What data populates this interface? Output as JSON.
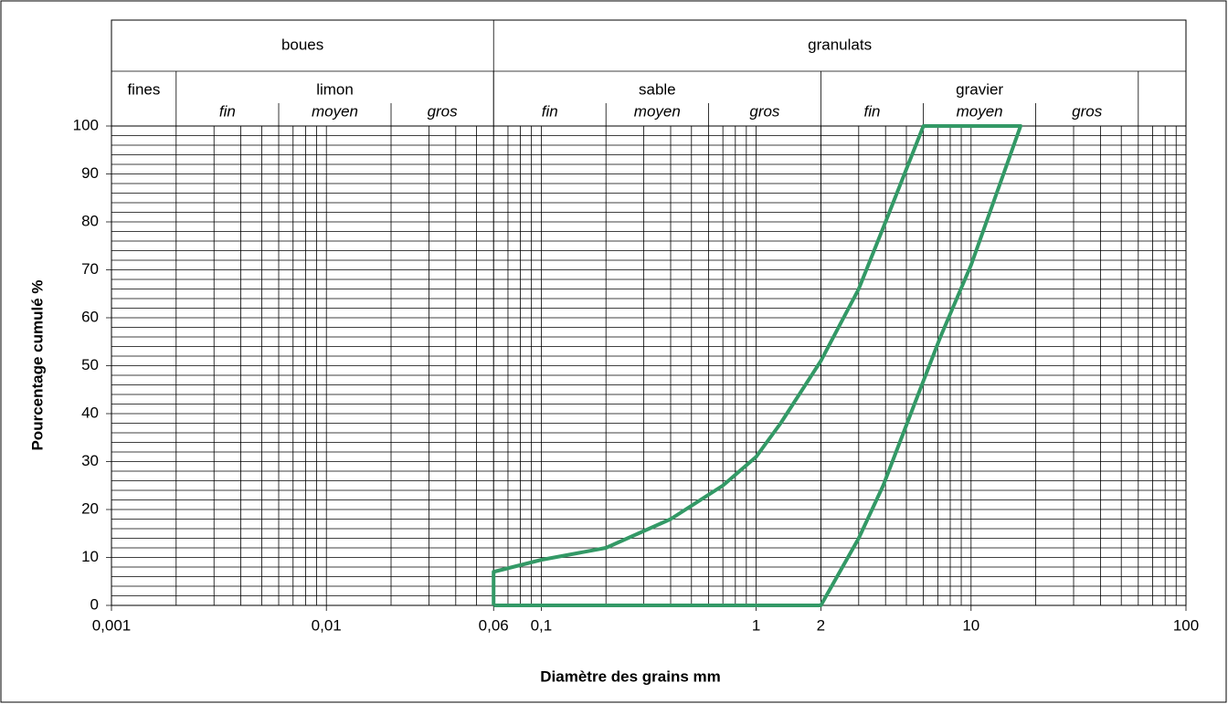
{
  "chart_data": {
    "type": "line",
    "x_label": "Diamètre des grains mm",
    "y_label": "Pourcentage cumulé %",
    "log_x": true,
    "grid": true,
    "xlim": [
      0.001,
      100
    ],
    "ylim": [
      0,
      100
    ],
    "xticks": [
      {
        "value": 0.001,
        "label": "0,001"
      },
      {
        "value": 0.01,
        "label": "0,01"
      },
      {
        "value": 0.06,
        "label": "0,06"
      },
      {
        "value": 0.1,
        "label": "0,1"
      },
      1,
      2,
      10,
      100
    ],
    "x_minor_ticks": [
      0.002,
      0.003,
      0.004,
      0.005,
      0.006,
      0.007,
      0.008,
      0.009,
      0.02,
      0.03,
      0.04,
      0.05,
      0.06,
      0.07,
      0.08,
      0.09,
      0.2,
      0.3,
      0.4,
      0.5,
      0.6,
      0.7,
      0.8,
      0.9,
      2,
      3,
      4,
      5,
      6,
      7,
      8,
      9,
      20,
      30,
      40,
      50,
      60,
      70,
      80,
      90
    ],
    "yticks": [
      0,
      10,
      20,
      30,
      40,
      50,
      60,
      70,
      80,
      90,
      100
    ],
    "y_minor_ticks": [
      2,
      4,
      6,
      8,
      12,
      14,
      16,
      18,
      22,
      24,
      26,
      28,
      32,
      34,
      36,
      38,
      42,
      44,
      46,
      48,
      52,
      54,
      56,
      58,
      62,
      64,
      66,
      68,
      72,
      74,
      76,
      78,
      82,
      84,
      86,
      88,
      92,
      94,
      96,
      98
    ],
    "series": [
      {
        "color": "#339966",
        "x": [
          0.06,
          0.06,
          0.1,
          0.2,
          0.4,
          0.7,
          1,
          1.3,
          2,
          3,
          4,
          6,
          17,
          10,
          7.2,
          5.4,
          3.9,
          3,
          2,
          0.06
        ],
        "values": [
          0,
          7,
          9.5,
          12,
          18,
          25,
          31,
          38,
          51,
          66,
          80,
          100,
          100,
          71,
          56,
          41.5,
          25,
          14,
          0,
          0
        ]
      }
    ],
    "header": {
      "top": [
        {
          "label": "boues",
          "from": 0.001,
          "to": 0.06
        },
        {
          "label": "granulats",
          "from": 0.06,
          "to": 100
        }
      ],
      "groups": [
        {
          "label": "fines",
          "from": 0.001,
          "to": 0.002,
          "subs": []
        },
        {
          "label": "limon",
          "from": 0.002,
          "to": 0.06,
          "subs": [
            {
              "label": "fin",
              "from": 0.002,
              "to": 0.006
            },
            {
              "label": "moyen",
              "from": 0.006,
              "to": 0.02
            },
            {
              "label": "gros",
              "from": 0.02,
              "to": 0.06
            }
          ]
        },
        {
          "label": "sable",
          "from": 0.06,
          "to": 2,
          "subs": [
            {
              "label": "fin",
              "from": 0.06,
              "to": 0.2
            },
            {
              "label": "moyen",
              "from": 0.2,
              "to": 0.6
            },
            {
              "label": "gros",
              "from": 0.6,
              "to": 2
            }
          ]
        },
        {
          "label": "gravier",
          "from": 2,
          "to": 60,
          "subs": [
            {
              "label": "fin",
              "from": 2,
              "to": 6
            },
            {
              "label": "moyen",
              "from": 6,
              "to": 20
            },
            {
              "label": "gros",
              "from": 20,
              "to": 60
            }
          ]
        }
      ]
    }
  }
}
